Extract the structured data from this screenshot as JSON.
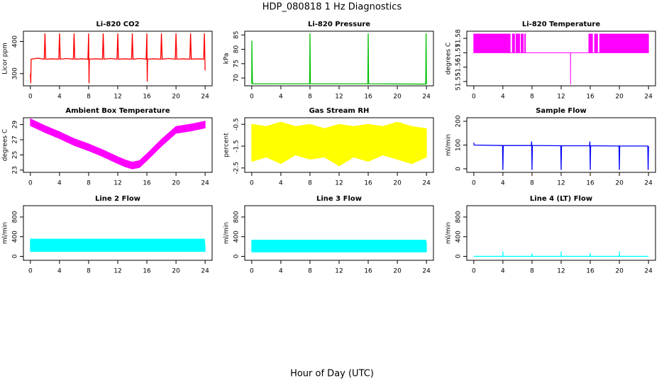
{
  "title": "HDP_080818  1 Hz Diagnostics",
  "xlabel": "Hour of Day (UTC)",
  "chart_data": [
    {
      "type": "line",
      "title": "Li-820 CO2",
      "ylabel": "Licor ppm",
      "color": "#ff0000",
      "xlim": [
        -0.96,
        24.96
      ],
      "xticks": [
        0,
        4,
        8,
        12,
        16,
        20,
        24
      ],
      "ylim": [
        262,
        432
      ],
      "yticks": [
        300,
        400
      ],
      "x": [
        0,
        0.05,
        0.1,
        0.15,
        1,
        1.9,
        2,
        2.1,
        3,
        3.9,
        4,
        4.1,
        5,
        5.9,
        6,
        6.1,
        7,
        7.9,
        8,
        8.05,
        8.1,
        9,
        9.9,
        10,
        10.1,
        11,
        11.9,
        12,
        12.1,
        13,
        13.9,
        14,
        14.1,
        15,
        15.9,
        16,
        16.05,
        16.1,
        17,
        17.9,
        18,
        18.1,
        19,
        19.9,
        20,
        20.1,
        21,
        21.9,
        22,
        22.1,
        23,
        23.8,
        23.9,
        24
      ],
      "values": [
        300,
        270,
        345,
        345,
        348,
        345,
        425,
        345,
        346,
        345,
        425,
        345,
        347,
        345,
        425,
        345,
        346,
        345,
        425,
        270,
        345,
        346,
        345,
        425,
        345,
        347,
        345,
        425,
        345,
        346,
        345,
        425,
        345,
        347,
        345,
        425,
        275,
        345,
        346,
        345,
        425,
        345,
        347,
        345,
        425,
        345,
        346,
        345,
        425,
        345,
        346,
        345,
        425,
        310
      ]
    },
    {
      "type": "line",
      "title": "Li-820 Pressure",
      "ylabel": "kPa",
      "color": "#00c000",
      "xlim": [
        -0.96,
        24.96
      ],
      "xticks": [
        0,
        4,
        8,
        12,
        16,
        20,
        24
      ],
      "ylim": [
        67.3,
        86.3
      ],
      "yticks": [
        70,
        75,
        80,
        85
      ],
      "x": [
        0,
        0.02,
        0.05,
        0.1,
        7.95,
        8,
        8.05,
        15.95,
        16,
        16.05,
        23.9,
        23.95,
        24
      ],
      "values": [
        68,
        83,
        76,
        68,
        68,
        85.5,
        68,
        68,
        85.5,
        68,
        67.9,
        85.5,
        67.9
      ]
    },
    {
      "type": "band",
      "title": "Li-820 Temperature",
      "ylabel": "degrees C",
      "color": "#ff00ff",
      "xlim": [
        -0.96,
        24.96
      ],
      "xticks": [
        0,
        4,
        8,
        12,
        16,
        20,
        24
      ],
      "ylim": [
        51.547,
        51.585
      ],
      "yticks": [
        51.55,
        51.56,
        51.57,
        51.58
      ],
      "x": [
        0,
        5,
        5,
        5.3,
        5.3,
        5.6,
        5.6,
        5.8,
        5.8,
        6.3,
        6.3,
        6.5,
        6.5,
        6.8,
        6.8,
        7,
        7,
        7.1,
        7.1,
        13.29,
        13.3,
        13.31,
        15.8,
        15.8,
        16.3,
        16.3,
        16.6,
        16.6,
        17,
        17,
        17.3,
        17.3,
        24
      ],
      "low": [
        51.57,
        51.57,
        51.57,
        51.57,
        51.57,
        51.57,
        51.57,
        51.57,
        51.57,
        51.57,
        51.57,
        51.57,
        51.57,
        51.57,
        51.57,
        51.57,
        51.57,
        51.57,
        51.57,
        51.57,
        51.548,
        51.57,
        51.57,
        51.57,
        51.57,
        51.57,
        51.57,
        51.57,
        51.57,
        51.57,
        51.57,
        51.57,
        51.57
      ],
      "high": [
        51.583,
        51.583,
        51.57,
        51.57,
        51.583,
        51.583,
        51.57,
        51.57,
        51.583,
        51.583,
        51.57,
        51.57,
        51.583,
        51.583,
        51.57,
        51.57,
        51.583,
        51.583,
        51.57,
        51.57,
        51.57,
        51.57,
        51.57,
        51.583,
        51.583,
        51.57,
        51.57,
        51.583,
        51.583,
        51.57,
        51.57,
        51.583,
        51.583
      ]
    },
    {
      "type": "band",
      "title": "Ambient Box Temperature",
      "ylabel": "degrees C",
      "color": "#ff00ff",
      "xlim": [
        -0.96,
        24.96
      ],
      "xticks": [
        0,
        4,
        8,
        12,
        16,
        20,
        24
      ],
      "ylim": [
        22.7,
        29.9
      ],
      "yticks": [
        23,
        25,
        27,
        29
      ],
      "x": [
        0,
        2,
        4,
        6,
        8,
        10,
        12,
        13,
        14,
        15,
        16,
        18,
        20,
        22,
        24
      ],
      "low": [
        28.85,
        27.95,
        27.15,
        26.25,
        25.55,
        24.75,
        23.85,
        23.45,
        23.15,
        23.35,
        24.25,
        26.15,
        27.85,
        28.15,
        28.55
      ],
      "high": [
        29.75,
        28.85,
        28.05,
        27.15,
        26.45,
        25.65,
        24.75,
        24.35,
        24.05,
        24.25,
        25.15,
        27.05,
        28.75,
        29.05,
        29.45
      ]
    },
    {
      "type": "band",
      "title": "Gas Stream RH",
      "ylabel": "percent",
      "color": "#ffff00",
      "xlim": [
        -0.96,
        24.96
      ],
      "xticks": [
        0,
        4,
        8,
        12,
        16,
        20,
        24
      ],
      "ylim": [
        -2.7,
        -0.2
      ],
      "yticks": [
        -2.5,
        -1.5,
        -0.5
      ],
      "x": [
        0,
        2,
        4,
        6,
        8,
        10,
        12,
        14,
        16,
        18,
        20,
        22,
        24
      ],
      "low": [
        -2.2,
        -2.0,
        -2.3,
        -1.9,
        -2.1,
        -2.0,
        -2.4,
        -2.0,
        -2.2,
        -1.9,
        -2.1,
        -2.3,
        -2.0
      ],
      "high": [
        -0.5,
        -0.6,
        -0.4,
        -0.6,
        -0.5,
        -0.7,
        -0.5,
        -0.6,
        -0.5,
        -0.6,
        -0.4,
        -0.6,
        -0.7
      ]
    },
    {
      "type": "line",
      "title": "Sample Flow",
      "ylabel": "ml/min",
      "color": "#0000ff",
      "xlim": [
        -0.96,
        24.96
      ],
      "xticks": [
        0,
        4,
        8,
        12,
        16,
        20,
        24
      ],
      "ylim": [
        -15,
        215
      ],
      "yticks": [
        0,
        100,
        200
      ],
      "x": [
        0,
        0.05,
        0.1,
        3.95,
        4,
        4.05,
        7.9,
        7.95,
        8,
        8.05,
        11.95,
        12,
        12.05,
        15.9,
        15.95,
        16,
        16.05,
        19.95,
        20,
        20.05,
        23.9,
        23.95,
        24
      ],
      "values": [
        110,
        100,
        100,
        98,
        -5,
        98,
        98,
        115,
        -5,
        98,
        97,
        -5,
        97,
        97,
        115,
        -5,
        97,
        96,
        -5,
        96,
        96,
        -5,
        95
      ]
    },
    {
      "type": "band",
      "title": "Line 2 Flow",
      "ylabel": "ml/min",
      "color": "#00ffff",
      "xlim": [
        -0.96,
        24.96
      ],
      "xticks": [
        0,
        4,
        8,
        12,
        16,
        20,
        24
      ],
      "ylim": [
        -80,
        1030
      ],
      "yticks": [
        0,
        400,
        800
      ],
      "x": [
        0,
        23.9,
        24
      ],
      "low": [
        100,
        100,
        100
      ],
      "high": [
        350,
        350,
        200
      ]
    },
    {
      "type": "band",
      "title": "Line 3 Flow",
      "ylabel": "ml/min",
      "color": "#00ffff",
      "xlim": [
        -0.96,
        24.96
      ],
      "xticks": [
        0,
        4,
        8,
        12,
        16,
        20,
        24
      ],
      "ylim": [
        -80,
        1030
      ],
      "yticks": [
        0,
        400,
        800
      ],
      "x": [
        0,
        23.9,
        24
      ],
      "low": [
        90,
        90,
        90
      ],
      "high": [
        330,
        330,
        280
      ]
    },
    {
      "type": "line",
      "title": "Line 4 (LT) Flow",
      "ylabel": "ml/min",
      "color": "#00ffff",
      "xlim": [
        -0.96,
        24.96
      ],
      "xticks": [
        0,
        4,
        8,
        12,
        16,
        20,
        24
      ],
      "ylim": [
        -80,
        1030
      ],
      "yticks": [
        0,
        400,
        800
      ],
      "x": [
        0,
        3.99,
        4,
        4.01,
        7.99,
        8,
        8.01,
        11.99,
        12,
        12.01,
        15.99,
        16,
        16.01,
        19.99,
        20,
        20.01,
        24
      ],
      "values": [
        0,
        0,
        100,
        0,
        0,
        60,
        0,
        0,
        100,
        0,
        0,
        60,
        0,
        0,
        100,
        0,
        0
      ]
    }
  ]
}
